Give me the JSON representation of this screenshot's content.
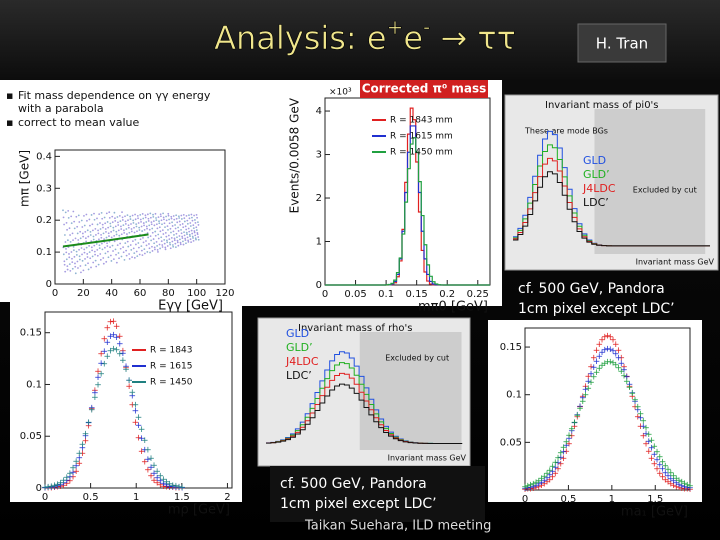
{
  "header": {
    "title_parts": [
      "Analysis: e",
      "+",
      "e",
      "-",
      " → ττ"
    ],
    "author": "H. Tran"
  },
  "bullets": [
    "Fit mass dependence on γγ energy",
    "with a parabola",
    "correct to mean value"
  ],
  "plots": [
    {
      "xlabel": "Eγγ [GeV]",
      "ylabel": "mπ [GeV]",
      "xlim": [
        0,
        120
      ],
      "ylim": [
        0,
        0.42
      ],
      "xticks": [
        0,
        20,
        40,
        60,
        80,
        100,
        120
      ],
      "yticks": [
        0,
        0.1,
        0.2,
        0.3,
        0.4
      ]
    },
    {
      "title": "Corrected π⁰ mass",
      "multiplier": "×10³",
      "xlabel": "mπ0 [GeV]",
      "ylabel": "Events/0.0058 GeV",
      "xlim": [
        0,
        0.27
      ],
      "ylim": [
        0,
        4.3
      ],
      "xticks": [
        0,
        0.05,
        0.1,
        0.15,
        0.2,
        0.25
      ],
      "yticks": [
        0,
        1,
        2,
        3,
        4
      ],
      "legend": [
        {
          "label": "R = 1843 mm",
          "color": "#e02020"
        },
        {
          "label": "R = 1615 mm",
          "color": "#2030d0"
        },
        {
          "label": "R = 1450 mm",
          "color": "#20a040"
        }
      ]
    },
    {
      "xlabel": "mρ [GeV]",
      "xlim": [
        0,
        2.05
      ],
      "ylim": [
        0,
        0.17
      ],
      "xticks": [
        0,
        0.5,
        1,
        1.5,
        2
      ],
      "yticks": [
        0,
        0.05,
        0.1,
        0.15
      ],
      "legend": [
        {
          "label": "R = 1843",
          "color": "#e02020"
        },
        {
          "label": "R = 1615",
          "color": "#2030d0"
        },
        {
          "label": "R = 1450",
          "color": "#208080"
        }
      ]
    },
    {
      "xlabel": "ma₁ [GeV]",
      "xlim": [
        0,
        1.9
      ],
      "ylim": [
        0,
        0.17
      ],
      "xticks": [
        0,
        0.5,
        1,
        1.5
      ],
      "yticks": [
        0.05,
        0.1,
        0.15
      ]
    }
  ],
  "insets": [
    {
      "title": "Invariant mass of pi0's",
      "note": "These are mode BGs",
      "cut": "Excluded by cut",
      "xlabel": "Invariant mass GeV",
      "legend": [
        {
          "label": "GLD",
          "color": "#2050e0"
        },
        {
          "label": "GLD’",
          "color": "#20b020"
        },
        {
          "label": "J4LDC",
          "color": "#e02020"
        },
        {
          "label": "LDC’",
          "color": "#111111"
        }
      ]
    },
    {
      "title": "Invariant mass of rho's",
      "cut": "Excluded by cut",
      "xlabel": "Invariant mass GeV",
      "legend": [
        {
          "label": "GLD",
          "color": "#2050e0"
        },
        {
          "label": "GLD’",
          "color": "#20b020"
        },
        {
          "label": "J4LDC",
          "color": "#e02020"
        },
        {
          "label": "LDC’",
          "color": "#111111"
        }
      ]
    }
  ],
  "captions": [
    [
      "cf. 500 GeV, Pandora",
      "1cm pixel except LDC’"
    ],
    [
      "cf. 500 GeV, Pandora",
      "1cm pixel except LDC’"
    ]
  ],
  "footer": "Taikan Suehara, ILD meeting"
}
